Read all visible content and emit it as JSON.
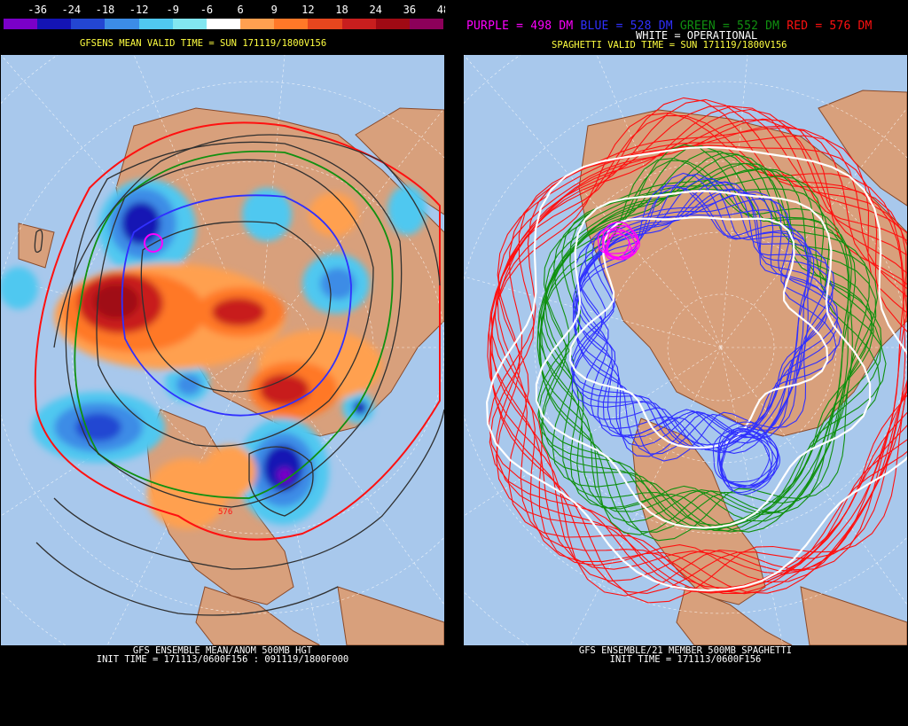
{
  "left_panel": {
    "colorbar": {
      "ticks": [
        "-36",
        "-24",
        "-18",
        "-12",
        "-9",
        "-6",
        "6",
        "9",
        "12",
        "18",
        "24",
        "36",
        "48"
      ],
      "colors": [
        "#7a00c8",
        "#1414b4",
        "#2346d2",
        "#3c8ce6",
        "#50c8f0",
        "#82e6f0",
        "#ffffff",
        "#ffa050",
        "#ff7828",
        "#e6461e",
        "#c81e1e",
        "#a00a14",
        "#8c005a"
      ]
    },
    "title": "GFSENS MEAN VALID TIME = SUN 171119/1800V156",
    "bottom_line1": "GFS ENSEMBLE MEAN/ANOM 500MB HGT",
    "bottom_line2": "INIT TIME = 171113/0600F156 : 091119/1800F000",
    "contour_label": "576"
  },
  "right_panel": {
    "legend": {
      "purple": "PURPLE = 498 DM",
      "blue": "BLUE = 528 DM",
      "green": "GREEN = 552 DM",
      "red": "RED = 576 DM",
      "white": "WHITE = OPERATIONAL"
    },
    "legend_colors": {
      "purple": "#ff00ff",
      "blue": "#3030ff",
      "green": "#109010",
      "red": "#ff1010",
      "white": "#ffffff"
    },
    "title": "SPAGHETTI VALID TIME = SUN 171119/1800V156",
    "bottom_line1": "GFS ENSEMBLE/21 MEMBER 500MB SPAGHETTI",
    "bottom_line2": "INIT TIME = 171113/0600F156"
  },
  "colors": {
    "ocean": "#a8c8ec",
    "land": "#d8a07c",
    "coast": "#8a4a2a",
    "grid": "#ffffff"
  }
}
